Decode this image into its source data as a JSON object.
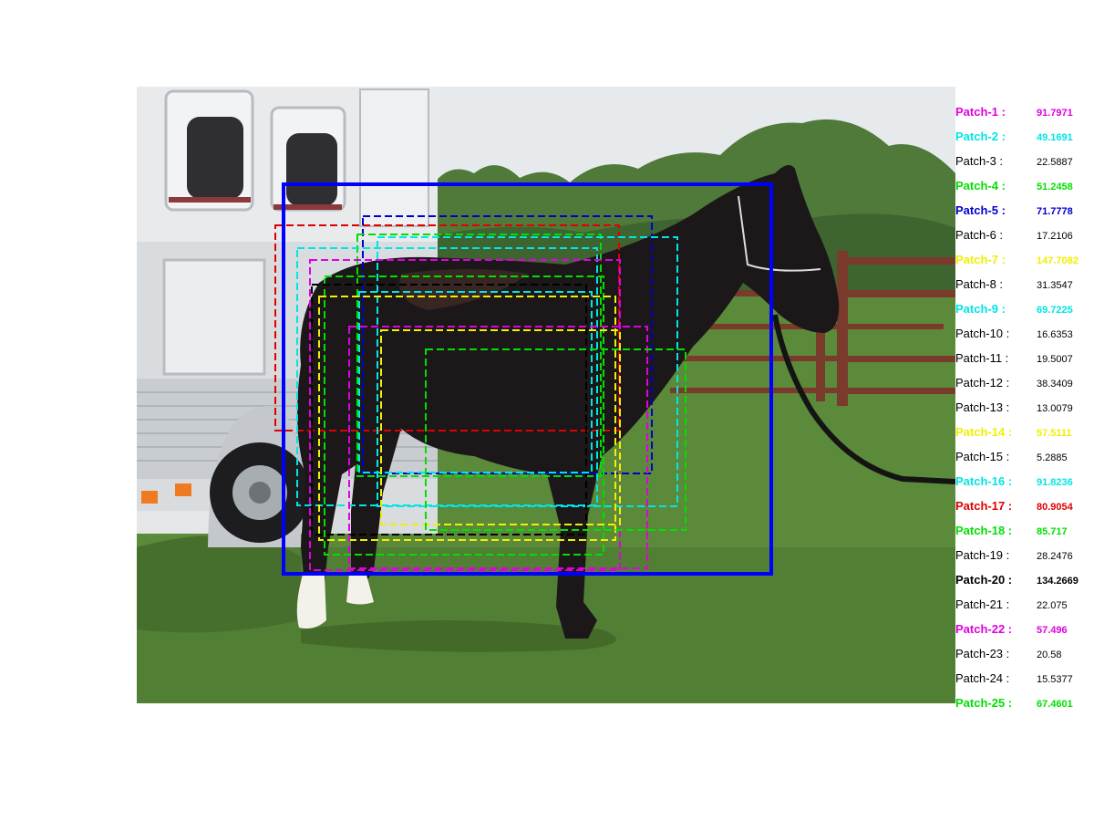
{
  "scene": {
    "subject": "horse",
    "colors": {
      "sky": "#e6eaec",
      "grass": "#5b8a3a",
      "grass_dark": "#466e2c",
      "trees": "#4f7a3a",
      "trailer": "#d9dcdf",
      "horse": "#1c1719",
      "fence": "#7a3a2c",
      "main_box": "#0000ff"
    }
  },
  "patches": [
    {
      "label": "Patch-1 :",
      "value": "91.7971",
      "color": "#e000e0",
      "bold": true
    },
    {
      "label": "Patch-2 :",
      "value": "49.1691",
      "color": "#00e5e5",
      "bold": true
    },
    {
      "label": "Patch-3 :",
      "value": "22.5887",
      "color": "#000000",
      "bold": false
    },
    {
      "label": "Patch-4 :",
      "value": "51.2458",
      "color": "#00e000",
      "bold": true
    },
    {
      "label": "Patch-5 :",
      "value": "71.7778",
      "color": "#0000cc",
      "bold": true
    },
    {
      "label": "Patch-6 :",
      "value": "17.2106",
      "color": "#000000",
      "bold": false
    },
    {
      "label": "Patch-7 :",
      "value": "147.7082",
      "color": "#f0f000",
      "bold": true
    },
    {
      "label": "Patch-8 :",
      "value": "31.3547",
      "color": "#000000",
      "bold": false
    },
    {
      "label": "Patch-9 :",
      "value": "69.7225",
      "color": "#00e5e5",
      "bold": true
    },
    {
      "label": "Patch-10 :",
      "value": "16.6353",
      "color": "#000000",
      "bold": false
    },
    {
      "label": "Patch-11 :",
      "value": "19.5007",
      "color": "#000000",
      "bold": false
    },
    {
      "label": "Patch-12 :",
      "value": "38.3409",
      "color": "#000000",
      "bold": false
    },
    {
      "label": "Patch-13 :",
      "value": "13.0079",
      "color": "#000000",
      "bold": false
    },
    {
      "label": "Patch-14 :",
      "value": "57.5111",
      "color": "#f0f000",
      "bold": true
    },
    {
      "label": "Patch-15 :",
      "value": "5.2885",
      "color": "#000000",
      "bold": false
    },
    {
      "label": "Patch-16 :",
      "value": "91.8236",
      "color": "#00e5e5",
      "bold": true
    },
    {
      "label": "Patch-17 :",
      "value": "80.9054",
      "color": "#e00000",
      "bold": true
    },
    {
      "label": "Patch-18 :",
      "value": "85.717",
      "color": "#00e000",
      "bold": true
    },
    {
      "label": "Patch-19 :",
      "value": "28.2476",
      "color": "#000000",
      "bold": false
    },
    {
      "label": "Patch-20 :",
      "value": "134.2669",
      "color": "#000000",
      "bold": true
    },
    {
      "label": "Patch-21 :",
      "value": "22.075",
      "color": "#000000",
      "bold": false
    },
    {
      "label": "Patch-22 :",
      "value": "57.496",
      "color": "#e000e0",
      "bold": true
    },
    {
      "label": "Patch-23 :",
      "value": "20.58",
      "color": "#000000",
      "bold": false
    },
    {
      "label": "Patch-24 :",
      "value": "15.5377",
      "color": "#000000",
      "bold": false
    },
    {
      "label": "Patch-25 :",
      "value": "67.4601",
      "color": "#00e000",
      "bold": true
    }
  ]
}
